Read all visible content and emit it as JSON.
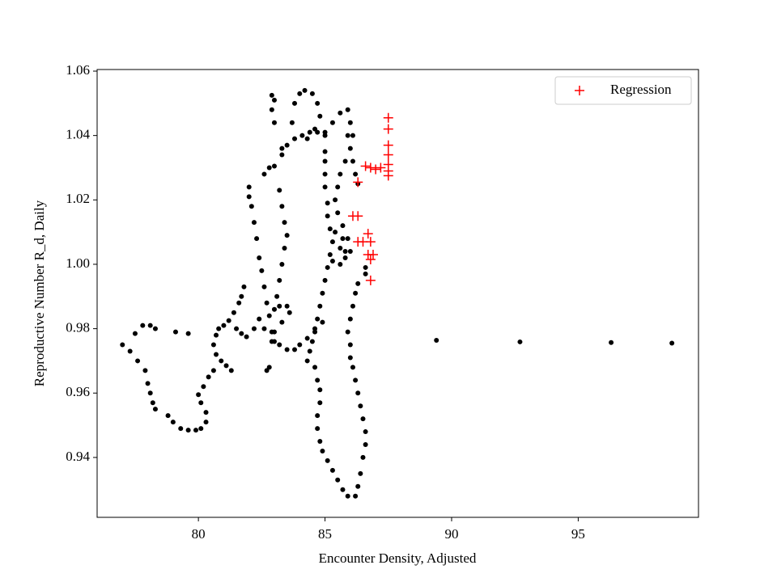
{
  "chart_data": {
    "type": "scatter",
    "xlabel": "Encounter Density, Adjusted",
    "ylabel": "Reproductive Number R_d, Daily",
    "xlim": [
      76.0,
      99.75
    ],
    "ylim": [
      0.9214,
      1.0605
    ],
    "xticks": [
      80,
      85,
      90,
      95
    ],
    "yticks": [
      0.94,
      0.96,
      0.98,
      {
        "value": 1.0,
        "label": "1.00"
      },
      1.02,
      1.04,
      1.06
    ],
    "legend": "upper right",
    "series": [
      {
        "color": "#000000",
        "marker": "o",
        "x": [
          98.7,
          96.3,
          92.7,
          89.4,
          77.0,
          77.3,
          77.6,
          77.9,
          78.0,
          78.1,
          78.2,
          78.3,
          77.5,
          77.8,
          78.1,
          78.3,
          79.1,
          79.6,
          78.8,
          79.0,
          79.3,
          79.6,
          79.9,
          80.1,
          80.3,
          80.3,
          80.1,
          80.0,
          80.2,
          80.4,
          80.6,
          80.9,
          81.1,
          81.3,
          80.7,
          80.6,
          80.7,
          80.8,
          81.0,
          81.2,
          81.4,
          81.6,
          81.7,
          81.8,
          81.5,
          81.7,
          81.9,
          82.2,
          82.4,
          82.6,
          82.0,
          82.0,
          82.1,
          82.2,
          82.3,
          82.4,
          82.5,
          82.6,
          82.7,
          82.8,
          82.9,
          83.0,
          82.7,
          82.8,
          82.9,
          83.0,
          82.9,
          83.0,
          83.3,
          83.5,
          83.8,
          84.1,
          84.4,
          84.7,
          85.0,
          82.8,
          82.6,
          83.0,
          83.2,
          83.3,
          83.4,
          83.5,
          83.4,
          83.3,
          83.2,
          83.1,
          83.0,
          83.2,
          83.5,
          83.6,
          83.3,
          83.0,
          82.9,
          83.2,
          83.5,
          83.8,
          84.0,
          84.3,
          84.6,
          84.9,
          83.3,
          83.7,
          83.8,
          84.0,
          84.2,
          84.5,
          84.7,
          84.8,
          84.6,
          84.3,
          85.0,
          85.0,
          85.0,
          85.0,
          85.1,
          85.1,
          85.2,
          85.3,
          85.2,
          85.1,
          85.0,
          84.9,
          84.8,
          84.7,
          84.6,
          84.5,
          84.4,
          84.3,
          84.6,
          84.7,
          84.8,
          84.8,
          84.7,
          84.7,
          84.8,
          84.9,
          85.1,
          85.3,
          85.5,
          85.7,
          85.9,
          86.2,
          86.3,
          86.4,
          86.5,
          86.6,
          86.6,
          86.5,
          86.4,
          86.3,
          86.2,
          86.1,
          86.0,
          86.0,
          85.9,
          86.0,
          86.1,
          86.2,
          86.3,
          86.6,
          86.6,
          85.6,
          85.8,
          86.0,
          85.9,
          85.7,
          85.5,
          85.4,
          85.5,
          85.6,
          85.8,
          86.0,
          86.1,
          86.0,
          85.9,
          85.6,
          85.3,
          85.0,
          85.9,
          86.1,
          86.2,
          86.3,
          85.6,
          85.3,
          85.4,
          85.7,
          85.8
        ],
        "values": [
          0.9755,
          0.9757,
          0.9759,
          0.9764,
          0.975,
          0.973,
          0.97,
          0.967,
          0.963,
          0.96,
          0.957,
          0.955,
          0.9785,
          0.981,
          0.981,
          0.98,
          0.979,
          0.9785,
          0.953,
          0.951,
          0.949,
          0.9485,
          0.9485,
          0.949,
          0.951,
          0.954,
          0.957,
          0.9595,
          0.962,
          0.965,
          0.967,
          0.97,
          0.9685,
          0.967,
          0.972,
          0.975,
          0.978,
          0.98,
          0.981,
          0.9825,
          0.985,
          0.988,
          0.99,
          0.993,
          0.98,
          0.9785,
          0.9775,
          0.98,
          0.983,
          0.98,
          1.024,
          1.021,
          1.018,
          1.013,
          1.008,
          1.002,
          0.998,
          0.993,
          0.988,
          0.984,
          0.979,
          0.976,
          0.967,
          0.968,
          1.0525,
          1.051,
          1.048,
          1.044,
          1.036,
          1.037,
          1.039,
          1.04,
          1.041,
          1.041,
          1.04,
          1.03,
          1.028,
          1.0305,
          1.023,
          1.018,
          1.013,
          1.009,
          1.005,
          1.0,
          0.995,
          0.99,
          0.986,
          0.987,
          0.987,
          0.985,
          0.982,
          0.979,
          0.976,
          0.975,
          0.9735,
          0.9735,
          0.975,
          0.977,
          0.98,
          0.982,
          1.034,
          1.044,
          1.05,
          1.053,
          1.054,
          1.053,
          1.05,
          1.046,
          1.042,
          1.039,
          1.035,
          1.032,
          1.028,
          1.024,
          1.019,
          1.015,
          1.011,
          1.007,
          1.003,
          0.999,
          0.995,
          0.991,
          0.987,
          0.983,
          0.979,
          0.976,
          0.973,
          0.97,
          0.968,
          0.964,
          0.961,
          0.957,
          0.953,
          0.949,
          0.945,
          0.942,
          0.939,
          0.936,
          0.933,
          0.93,
          0.928,
          0.928,
          0.931,
          0.935,
          0.94,
          0.944,
          0.948,
          0.952,
          0.956,
          0.96,
          0.964,
          0.968,
          0.971,
          0.975,
          0.979,
          0.983,
          0.987,
          0.991,
          0.994,
          0.997,
          0.999,
          1.0,
          1.002,
          1.004,
          1.008,
          1.012,
          1.016,
          1.02,
          1.024,
          1.028,
          1.032,
          1.036,
          1.04,
          1.044,
          1.048,
          1.047,
          1.044,
          1.041,
          1.04,
          1.032,
          1.028,
          1.025,
          1.005,
          1.001,
          1.01,
          1.008,
          1.004
        ]
      },
      {
        "name": "Regression",
        "color": "#ff0000",
        "marker": "+",
        "x": [
          87.5,
          87.5,
          87.5,
          87.5,
          87.5,
          87.5,
          87.5,
          87.2,
          87.0,
          86.8,
          86.6,
          86.3,
          86.1,
          86.3,
          86.3,
          86.5,
          86.7,
          86.8,
          86.9,
          86.7,
          86.8,
          86.8
        ],
        "values": [
          1.0455,
          1.042,
          1.037,
          1.034,
          1.031,
          1.029,
          1.0275,
          1.03,
          1.0295,
          1.03,
          1.0305,
          1.0255,
          1.015,
          1.015,
          1.007,
          1.007,
          1.0095,
          1.007,
          1.003,
          1.003,
          1.0015,
          0.995
        ]
      }
    ]
  }
}
